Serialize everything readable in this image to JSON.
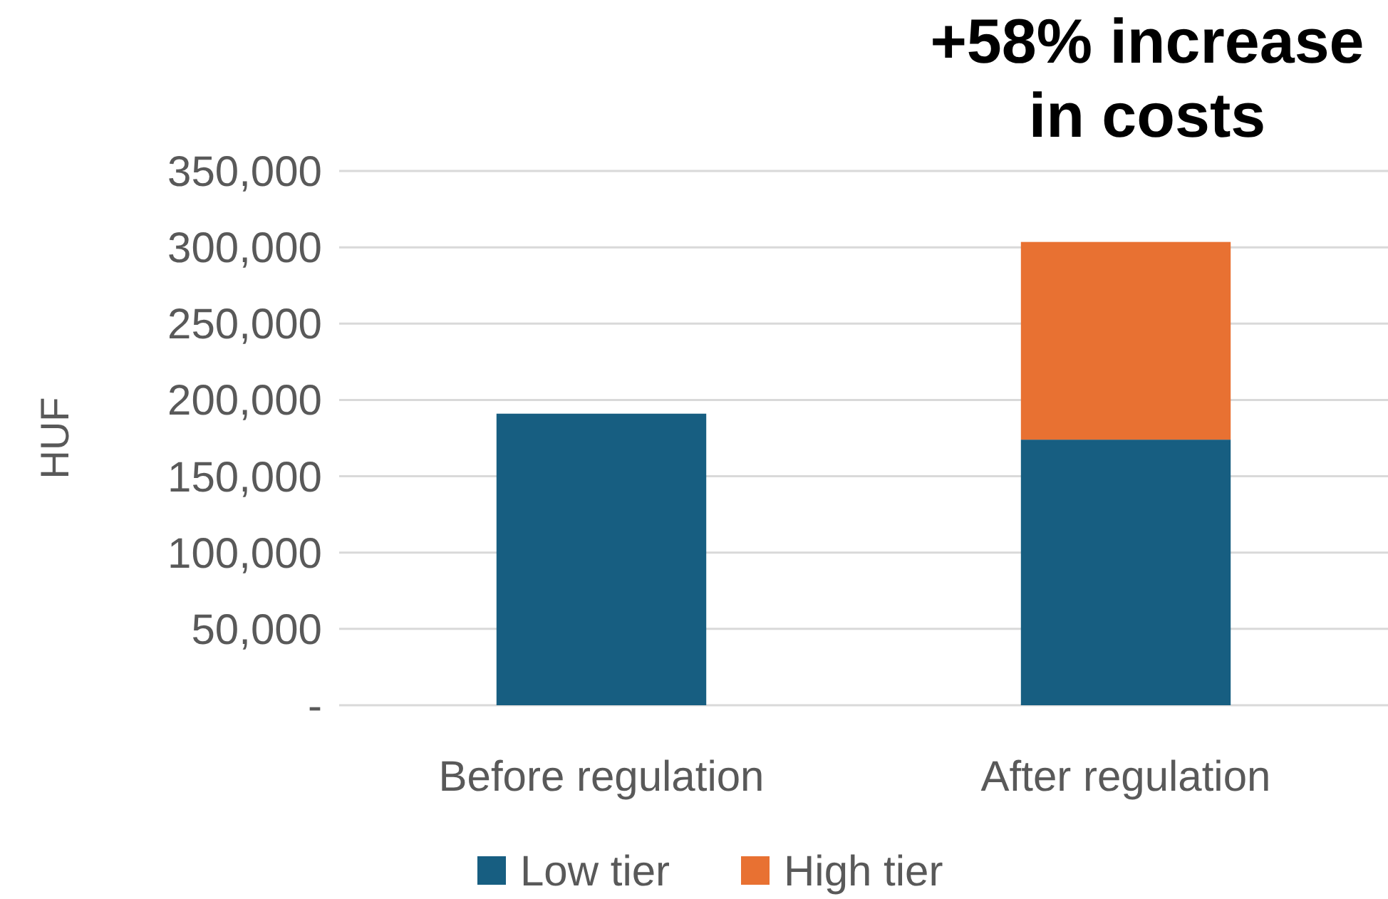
{
  "chart_data": {
    "type": "bar",
    "stacked": true,
    "ylabel": "HUF",
    "categories": [
      "Before regulation",
      "After regulation"
    ],
    "series": [
      {
        "name": "Low tier",
        "color": "#175e81",
        "values": [
          191000,
          174000
        ]
      },
      {
        "name": "High tier",
        "color": "#e87132",
        "values": [
          null,
          129500
        ]
      }
    ],
    "ylim": [
      0,
      350000
    ],
    "yticks": [
      {
        "value": 0,
        "label": "-"
      },
      {
        "value": 50000,
        "label": "50,000"
      },
      {
        "value": 100000,
        "label": "100,000"
      },
      {
        "value": 150000,
        "label": "150,000"
      },
      {
        "value": 200000,
        "label": "200,000"
      },
      {
        "value": 250000,
        "label": "250,000"
      },
      {
        "value": 300000,
        "label": "300,000"
      },
      {
        "value": 350000,
        "label": "350,000"
      }
    ],
    "grid": "y",
    "legend": "bottom",
    "annotations": [
      "+58% increase in costs"
    ]
  }
}
